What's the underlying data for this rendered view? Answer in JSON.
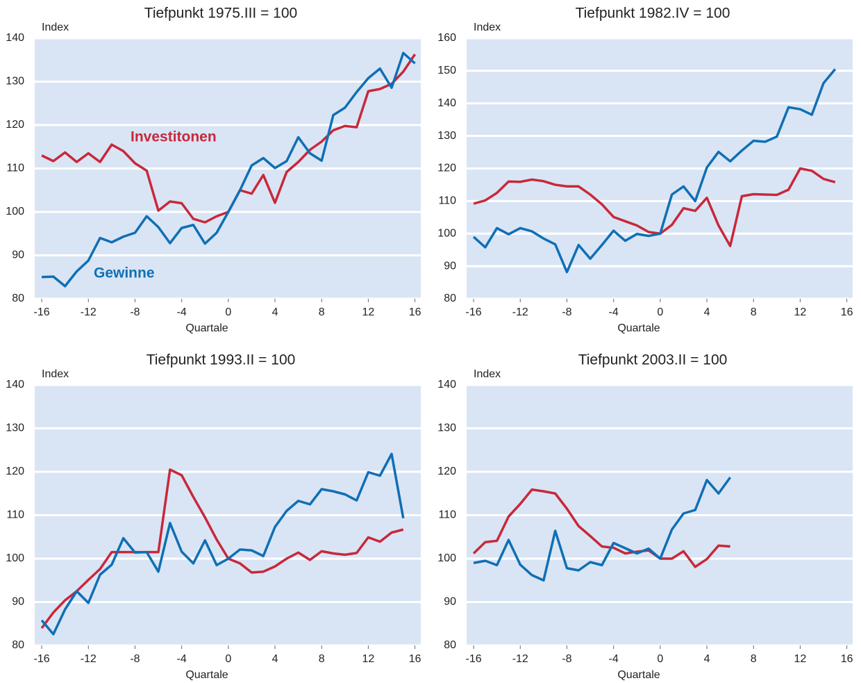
{
  "chart_data": [
    {
      "type": "line",
      "title": "Tiefpunkt 1975.III = 100",
      "ylabel": "Index",
      "xlabel": "Quartale",
      "x": [
        -16,
        -15,
        -14,
        -13,
        -12,
        -11,
        -10,
        -9,
        -8,
        -7,
        -6,
        -5,
        -4,
        -3,
        -2,
        -1,
        0,
        1,
        2,
        3,
        4,
        5,
        6,
        7,
        8,
        9,
        10,
        11,
        12,
        13,
        14,
        15,
        16
      ],
      "series": [
        {
          "name": "Investitonen",
          "color": "#c8283a",
          "values": [
            113,
            111.7,
            113.7,
            111.5,
            113.5,
            111.5,
            115.5,
            114,
            111.2,
            109.5,
            100.3,
            102.4,
            102,
            98.4,
            97.6,
            99,
            100,
            105,
            104.2,
            108.5,
            102.1,
            109.2,
            111.5,
            114.3,
            116.2,
            118.8,
            119.8,
            119.5,
            127.8,
            128.3,
            129.5,
            132.3,
            136.3
          ]
        },
        {
          "name": "Gewinne",
          "color": "#0f6fb5",
          "values": [
            85,
            85.1,
            82.9,
            86.3,
            88.8,
            94,
            93,
            94.3,
            95.2,
            99,
            96.5,
            92.8,
            96.3,
            97,
            92.7,
            95.2,
            100,
            105,
            110.7,
            112.4,
            110.1,
            111.7,
            117.2,
            113.5,
            111.8,
            122.3,
            124,
            127.6,
            130.8,
            133,
            128.6,
            136.6,
            134.2
          ]
        }
      ],
      "xlim": [
        -16.6,
        16.5
      ],
      "xticks": [
        -16,
        -12,
        -8,
        -4,
        0,
        4,
        8,
        12,
        16
      ],
      "ylim": [
        80,
        140
      ],
      "yticks": [
        80,
        90,
        100,
        110,
        120,
        130,
        140
      ],
      "grid": true
    },
    {
      "type": "line",
      "title": "Tiefpunkt 1982.IV = 100",
      "ylabel": "Index",
      "xlabel": "Quartale",
      "x": [
        -16,
        -15,
        -14,
        -13,
        -12,
        -11,
        -10,
        -9,
        -8,
        -7,
        -6,
        -5,
        -4,
        -3,
        -2,
        -1,
        0,
        1,
        2,
        3,
        4,
        5,
        6,
        7,
        8,
        9,
        10,
        11,
        12,
        13,
        14,
        15
      ],
      "series": [
        {
          "color": "#c8283a",
          "values": [
            109.2,
            110.2,
            112.5,
            116,
            115.9,
            116.6,
            116.1,
            115,
            114.5,
            114.5,
            112,
            109,
            105.1,
            103.8,
            102.5,
            100.5,
            100,
            102.7,
            107.8,
            107,
            111,
            102.5,
            96.2,
            111.5,
            112.1,
            112,
            111.9,
            113.5,
            120,
            119.3,
            116.8,
            115.8
          ]
        },
        {
          "color": "#0f6fb5",
          "values": [
            99,
            95.8,
            101.7,
            99.8,
            101.7,
            100.7,
            98.5,
            96.7,
            88.2,
            96.5,
            92.3,
            96.5,
            100.9,
            97.8,
            99.9,
            99.3,
            100,
            112,
            114.5,
            110,
            120.3,
            125.1,
            122.2,
            125.5,
            128.5,
            128.2,
            129.8,
            138.8,
            138.2,
            136.5,
            146.2,
            150.5
          ]
        }
      ],
      "xlim": [
        -16.6,
        16.5
      ],
      "xticks": [
        -16,
        -12,
        -8,
        -4,
        0,
        4,
        8,
        12,
        16
      ],
      "ylim": [
        80,
        160
      ],
      "yticks": [
        80,
        90,
        100,
        110,
        120,
        130,
        140,
        150,
        160
      ],
      "grid": true
    },
    {
      "type": "line",
      "title": "Tiefpunkt 1993.II = 100",
      "ylabel": "Index",
      "xlabel": "Quartale",
      "x": [
        -16,
        -15,
        -14,
        -13,
        -12,
        -11,
        -10,
        -9,
        -8,
        -7,
        -6,
        -5,
        -4,
        -3,
        -2,
        -1,
        0,
        1,
        2,
        3,
        4,
        5,
        6,
        7,
        8,
        9,
        10,
        11,
        12,
        13,
        14,
        15
      ],
      "series": [
        {
          "color": "#c8283a",
          "values": [
            84,
            87.6,
            90.4,
            92.5,
            95.1,
            97.6,
            101.5,
            101.5,
            101.5,
            101.5,
            101.5,
            120.5,
            119.2,
            114.2,
            109.5,
            104.4,
            100,
            98.9,
            96.8,
            97,
            98.2,
            100,
            101.4,
            99.7,
            101.7,
            101.2,
            100.9,
            101.3,
            104.9,
            103.9,
            106,
            106.7
          ]
        },
        {
          "color": "#0f6fb5",
          "values": [
            85.8,
            82.6,
            88.3,
            92.5,
            89.8,
            96.3,
            98.6,
            104.7,
            101.4,
            101.5,
            97,
            108.2,
            101.6,
            98.9,
            104.2,
            98.5,
            100,
            102.1,
            101.9,
            100.6,
            107.3,
            111,
            113.3,
            112.5,
            116,
            115.5,
            114.8,
            113.4,
            119.9,
            119.1,
            124.1,
            109.3
          ]
        }
      ],
      "xlim": [
        -16.6,
        16.5
      ],
      "xticks": [
        -16,
        -12,
        -8,
        -4,
        0,
        4,
        8,
        12,
        16
      ],
      "ylim": [
        80,
        140
      ],
      "yticks": [
        80,
        90,
        100,
        110,
        120,
        130,
        140
      ],
      "grid": true
    },
    {
      "type": "line",
      "title": "Tiefpunkt 2003.II = 100",
      "ylabel": "Index",
      "xlabel": "Quartale",
      "x": [
        -16,
        -15,
        -14,
        -13,
        -12,
        -11,
        -10,
        -9,
        -8,
        -7,
        -6,
        -5,
        -4,
        -3,
        -2,
        -1,
        0,
        1,
        2,
        3,
        4,
        5,
        6
      ],
      "series": [
        {
          "color": "#c8283a",
          "values": [
            101.2,
            103.8,
            104.1,
            109.7,
            112.6,
            115.9,
            115.5,
            115,
            111.5,
            107.5,
            105.2,
            102.8,
            102.5,
            101.2,
            101.6,
            101.9,
            100,
            100,
            101.7,
            98.1,
            99.9,
            103,
            102.8
          ]
        },
        {
          "color": "#0f6fb5",
          "values": [
            99,
            99.5,
            98.5,
            104.3,
            98.6,
            96.2,
            95,
            106.4,
            97.8,
            97.3,
            99.2,
            98.5,
            103.6,
            102.4,
            101.2,
            102.3,
            100,
            106.7,
            110.4,
            111.2,
            118.1,
            115,
            118.7
          ]
        }
      ],
      "xlim": [
        -16.6,
        16.5
      ],
      "xticks": [
        -16,
        -12,
        -8,
        -4,
        0,
        4,
        8,
        12,
        16
      ],
      "ylim": [
        80,
        140
      ],
      "yticks": [
        80,
        90,
        100,
        110,
        120,
        130,
        140
      ],
      "grid": true
    }
  ]
}
